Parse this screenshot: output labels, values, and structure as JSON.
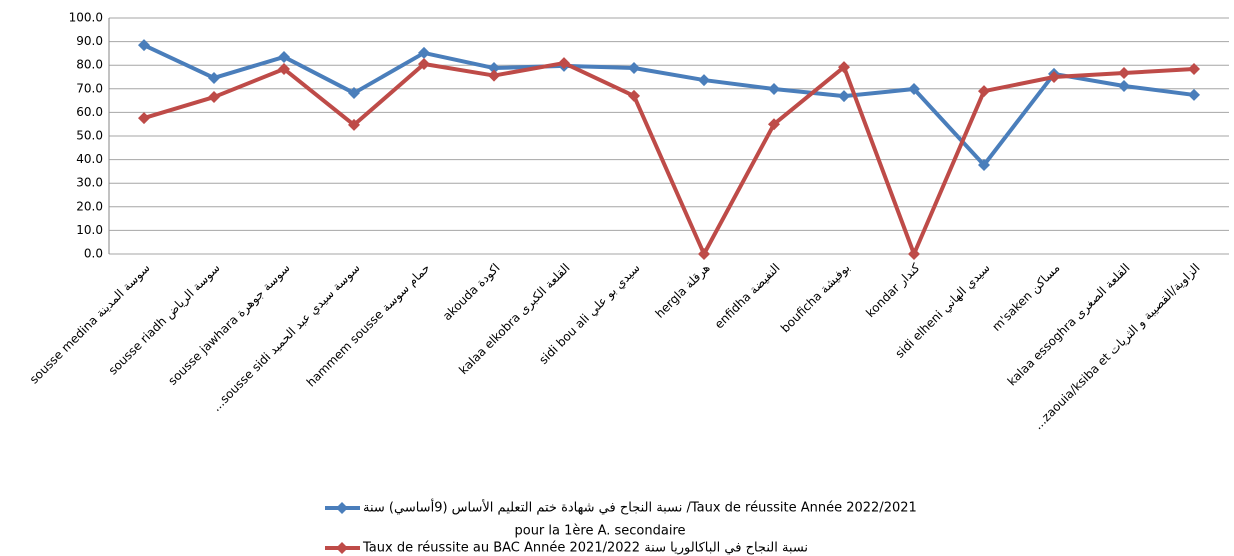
{
  "chart_data": {
    "type": "line",
    "categories": [
      "sousse medina  سوسة المدينة",
      "sousse riadh  سوسة الرياض",
      "sousse jawhara  سوسة جوهرة",
      "...sousse sidi   سوسة سيدي عبد الحميد",
      "hammem sousse  حمام سوسة",
      "akouda  اكودة",
      "kalaa elkobra  القلعة الكبرى",
      "sidi bou ali  سيدي بو علي",
      "hergla  هرقلة",
      "enfidha  النفيضة",
      "bouficha  بوفيشة",
      "kondar  كندار",
      "sidi elheni  سيدي الهاني",
      "m'saken  مساكن",
      "kalaa essoghra  القلعة الصغرى",
      "...zaouia/ksiba et  الزاوية/القصيبة و الثريات"
    ],
    "series": [
      {
        "name": "نسبة النجاح في شهادة ختم التعليم الأساس (9أساسي) سنة /Taux de réussite Année 2022/2021",
        "color": "#4a7ebb",
        "values": [
          88.5,
          74.6,
          83.5,
          68.2,
          85.2,
          78.8,
          79.7,
          78.8,
          73.7,
          69.9,
          66.9,
          69.9,
          37.7,
          76.3,
          71.2,
          67.4
        ]
      },
      {
        "name": "Taux de réussite au BAC Année 2021/2022 نسبة النجاح في الباكالوريا سنة",
        "color": "#be4b48",
        "values": [
          57.6,
          66.5,
          78.4,
          54.7,
          80.5,
          75.6,
          80.9,
          67.0,
          0.0,
          55.0,
          79.2,
          0.0,
          69.0,
          75.0,
          76.7,
          78.4
        ]
      }
    ],
    "legend_note": "pour la 1ère A. secondaire",
    "ylim": [
      0,
      100
    ],
    "yticks": [
      {
        "value": 0,
        "label": "0.0"
      },
      {
        "value": 10,
        "label": "10.0"
      },
      {
        "value": 20,
        "label": "20.0"
      },
      {
        "value": 30,
        "label": "30.0"
      },
      {
        "value": 40,
        "label": "40.0"
      },
      {
        "value": 50,
        "label": "50.0"
      },
      {
        "value": 60,
        "label": "60.0"
      },
      {
        "value": 70,
        "label": "70.0"
      },
      {
        "value": 80,
        "label": "80.0"
      },
      {
        "value": 90,
        "label": "90.0"
      },
      {
        "value": 100,
        "label": "100.0"
      }
    ],
    "grid": true,
    "legend": "bottom"
  }
}
